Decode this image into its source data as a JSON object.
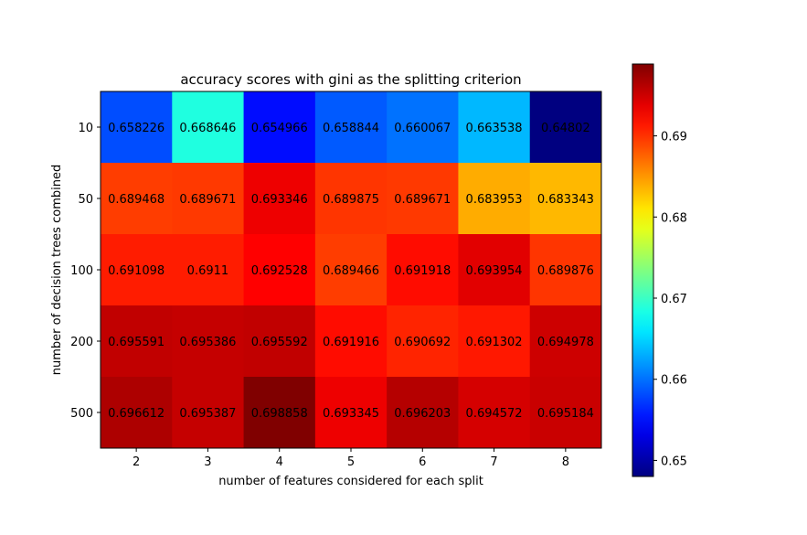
{
  "chart_data": {
    "type": "heatmap",
    "title": "accuracy scores with gini as the splitting criterion",
    "xlabel": "number of features considered for each split",
    "ylabel": "number of decision trees combined",
    "x": [
      "2",
      "3",
      "4",
      "5",
      "6",
      "7",
      "8"
    ],
    "y": [
      "10",
      "50",
      "100",
      "200",
      "500"
    ],
    "values": [
      [
        0.658226,
        0.668646,
        0.654966,
        0.658844,
        0.660067,
        0.663538,
        0.64802
      ],
      [
        0.689468,
        0.689671,
        0.693346,
        0.689875,
        0.689671,
        0.683953,
        0.683343
      ],
      [
        0.691098,
        0.6911,
        0.692528,
        0.689466,
        0.691918,
        0.693954,
        0.689876
      ],
      [
        0.695591,
        0.695386,
        0.695592,
        0.691916,
        0.690692,
        0.691302,
        0.694978
      ],
      [
        0.696612,
        0.695387,
        0.698858,
        0.693345,
        0.696203,
        0.694572,
        0.695184
      ]
    ],
    "cell_labels": [
      [
        "0.658226",
        "0.668646",
        "0.654966",
        "0.658844",
        "0.660067",
        "0.663538",
        "0.64802"
      ],
      [
        "0.689468",
        "0.689671",
        "0.693346",
        "0.689875",
        "0.689671",
        "0.683953",
        "0.683343"
      ],
      [
        "0.691098",
        "0.6911",
        "0.692528",
        "0.689466",
        "0.691918",
        "0.693954",
        "0.689876"
      ],
      [
        "0.695591",
        "0.695386",
        "0.695592",
        "0.691916",
        "0.690692",
        "0.691302",
        "0.694978"
      ],
      [
        "0.696612",
        "0.695387",
        "0.698858",
        "0.693345",
        "0.696203",
        "0.694572",
        "0.695184"
      ]
    ],
    "colormap": "jet",
    "color_range": [
      0.64802,
      0.698858
    ],
    "colorbar_ticks": [
      "0.65",
      "0.66",
      "0.67",
      "0.68",
      "0.69"
    ],
    "colorbar_tick_values": [
      0.65,
      0.66,
      0.67,
      0.68,
      0.69
    ],
    "grid": false
  }
}
